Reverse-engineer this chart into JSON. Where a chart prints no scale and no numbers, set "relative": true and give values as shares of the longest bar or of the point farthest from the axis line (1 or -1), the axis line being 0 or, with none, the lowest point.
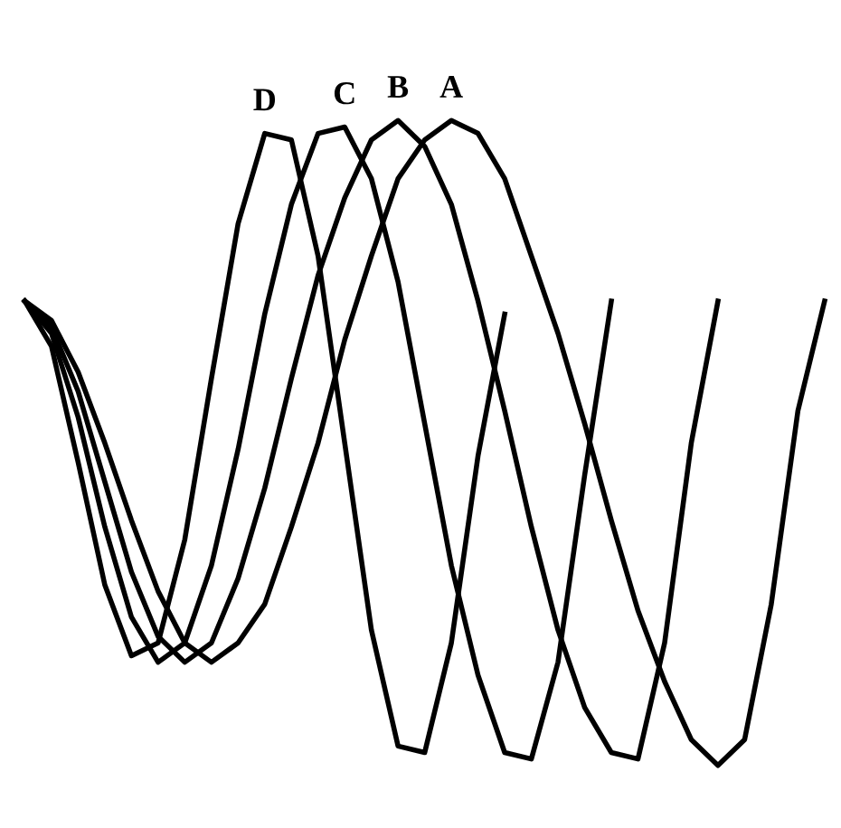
{
  "chart_data": {
    "type": "line",
    "relative": true,
    "legend": false,
    "marker": "none",
    "line_style": "solid",
    "categories": [
      null,
      null,
      null,
      null,
      null,
      null,
      null,
      null,
      null,
      null,
      null,
      null,
      null,
      null,
      null,
      null,
      null,
      null,
      null,
      null,
      null,
      null,
      null,
      null,
      null,
      null,
      null,
      null,
      null,
      null,
      null
    ],
    "series": [
      {
        "name": "A",
        "color": "#000000",
        "values": [
          0.72,
          0.69,
          0.61,
          0.5,
          0.38,
          0.27,
          0.19,
          0.16,
          0.19,
          0.25,
          0.37,
          0.5,
          0.66,
          0.79,
          0.91,
          0.97,
          1.0,
          0.98,
          0.91,
          0.79,
          0.67,
          0.53,
          0.38,
          0.24,
          0.13,
          0.04,
          0.0,
          0.04,
          0.25,
          0.55,
          0.72
        ]
      },
      {
        "name": "B",
        "color": "#000000",
        "values": [
          0.72,
          0.68,
          0.58,
          0.44,
          0.3,
          0.2,
          0.16,
          0.19,
          0.29,
          0.43,
          0.6,
          0.76,
          0.88,
          0.97,
          1.0,
          0.96,
          0.87,
          0.72,
          0.55,
          0.37,
          0.21,
          0.09,
          0.02,
          0.01,
          0.19,
          0.5,
          0.72,
          null,
          null,
          null,
          null
        ]
      },
      {
        "name": "C",
        "color": "#000000",
        "values": [
          0.72,
          0.67,
          0.54,
          0.37,
          0.23,
          0.16,
          0.19,
          0.31,
          0.49,
          0.7,
          0.87,
          0.98,
          0.99,
          0.91,
          0.75,
          0.53,
          0.31,
          0.14,
          0.02,
          0.01,
          0.16,
          0.45,
          0.72,
          null,
          null,
          null,
          null,
          null,
          null,
          null,
          null
        ]
      },
      {
        "name": "D",
        "color": "#000000",
        "values": [
          0.72,
          0.65,
          0.47,
          0.28,
          0.17,
          0.19,
          0.35,
          0.6,
          0.84,
          0.98,
          0.97,
          0.79,
          0.5,
          0.21,
          0.03,
          0.02,
          0.19,
          0.48,
          0.7,
          null,
          null,
          null,
          null,
          null,
          null,
          null,
          null,
          null,
          null,
          null,
          null
        ]
      }
    ]
  }
}
